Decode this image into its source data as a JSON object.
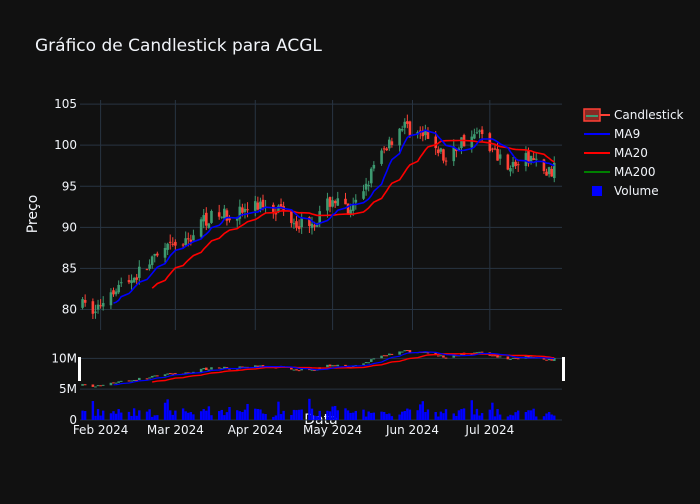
{
  "chart_data": {
    "type": "candlestick",
    "title": "Gráfico de Candlestick para ACGL",
    "xlabel": "Data",
    "ylabel": "Preço",
    "ylim": [
      77.5,
      105.5
    ],
    "y_ticks": [
      80,
      85,
      90,
      95,
      100,
      105
    ],
    "volume_ylim": [
      0,
      12000000
    ],
    "volume_ticks": [
      {
        "value": 0,
        "label": "0"
      },
      {
        "value": 5000000,
        "label": "5M"
      },
      {
        "value": 10000000,
        "label": "10M"
      }
    ],
    "x_range": [
      "2024-01-24",
      "2024-07-29"
    ],
    "x_ticks": [
      {
        "date": "2024-02-01",
        "label": "Feb 2024"
      },
      {
        "date": "2024-03-01",
        "label": "Mar 2024"
      },
      {
        "date": "2024-04-01",
        "label": "Apr 2024"
      },
      {
        "date": "2024-05-01",
        "label": "May 2024"
      },
      {
        "date": "2024-06-01",
        "label": "Jun 2024"
      },
      {
        "date": "2024-07-01",
        "label": "Jul 2024"
      }
    ],
    "grid": true,
    "legend_position": "right",
    "legend": [
      {
        "name": "Candlestick",
        "kind": "candle"
      },
      {
        "name": "MA9",
        "kind": "line",
        "color": "#0000ff"
      },
      {
        "name": "MA20",
        "kind": "line",
        "color": "#ff0000"
      },
      {
        "name": "MA200",
        "kind": "line",
        "color": "#008000"
      },
      {
        "name": "Volume",
        "kind": "square",
        "color": "#0000ff"
      }
    ],
    "colors": {
      "increasing": "#3d9970",
      "decreasing": "#ff4136",
      "volume": "#0000ff",
      "background": "#111111"
    },
    "price_keypoints": [
      [
        "2024-01-25",
        80.5
      ],
      [
        "2024-01-30",
        79.8
      ],
      [
        "2024-02-05",
        82.5
      ],
      [
        "2024-02-12",
        83.5
      ],
      [
        "2024-02-20",
        85.5
      ],
      [
        "2024-02-28",
        87.5
      ],
      [
        "2024-03-05",
        88.0
      ],
      [
        "2024-03-12",
        91.0
      ],
      [
        "2024-03-20",
        91.5
      ],
      [
        "2024-03-28",
        92.0
      ],
      [
        "2024-04-05",
        93.0
      ],
      [
        "2024-04-12",
        92.0
      ],
      [
        "2024-04-18",
        90.5
      ],
      [
        "2024-04-25",
        91.0
      ],
      [
        "2024-05-01",
        93.5
      ],
      [
        "2024-05-08",
        91.5
      ],
      [
        "2024-05-15",
        96.0
      ],
      [
        "2024-05-22",
        100.0
      ],
      [
        "2024-05-28",
        102.5
      ],
      [
        "2024-06-03",
        101.5
      ],
      [
        "2024-06-10",
        100.0
      ],
      [
        "2024-06-14",
        98.0
      ],
      [
        "2024-06-20",
        100.5
      ],
      [
        "2024-06-28",
        101.5
      ],
      [
        "2024-07-03",
        99.0
      ],
      [
        "2024-07-10",
        97.5
      ],
      [
        "2024-07-17",
        98.5
      ],
      [
        "2024-07-22",
        96.5
      ],
      [
        "2024-07-26",
        97.0
      ]
    ]
  }
}
